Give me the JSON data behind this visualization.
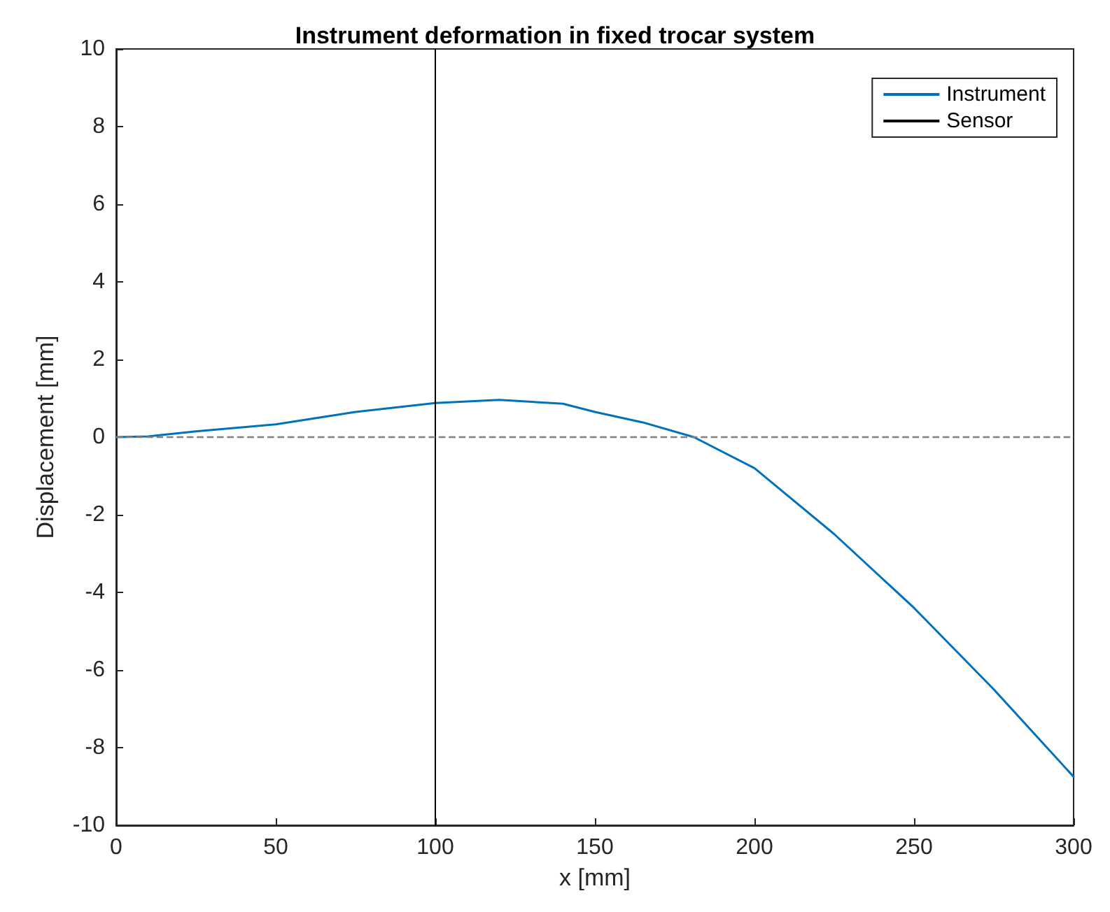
{
  "chart_data": {
    "type": "line",
    "title": "Instrument deformation in fixed trocar system",
    "xlabel": "x [mm]",
    "ylabel": "Displacement [mm]",
    "xlim": [
      0,
      300
    ],
    "xticks": [
      0,
      50,
      100,
      150,
      200,
      250,
      300
    ],
    "ylim": [
      -10,
      10
    ],
    "yticks": [
      -10,
      -8,
      -6,
      -4,
      -2,
      0,
      2,
      4,
      6,
      8,
      10
    ],
    "grid": false,
    "legend": "top right",
    "marker": "none",
    "series": [
      {
        "name": "Instrument",
        "color": "#0072bd",
        "x": [
          0,
          10,
          25,
          50,
          75,
          100,
          120,
          140,
          150,
          165,
          181,
          200,
          225,
          250,
          275,
          300
        ],
        "values": [
          0,
          0.02,
          0.15,
          0.33,
          0.65,
          0.88,
          0.96,
          0.86,
          0.65,
          0.38,
          0,
          -0.8,
          -2.5,
          -4.4,
          -6.5,
          -8.75
        ]
      },
      {
        "name": "Sensor",
        "color": "#000000",
        "x": [
          100,
          100
        ],
        "values": [
          -10,
          10
        ]
      }
    ],
    "ref_lines": [
      {
        "axis": "y",
        "value": 0,
        "color": "#808080",
        "line_style": "dashed"
      }
    ]
  }
}
